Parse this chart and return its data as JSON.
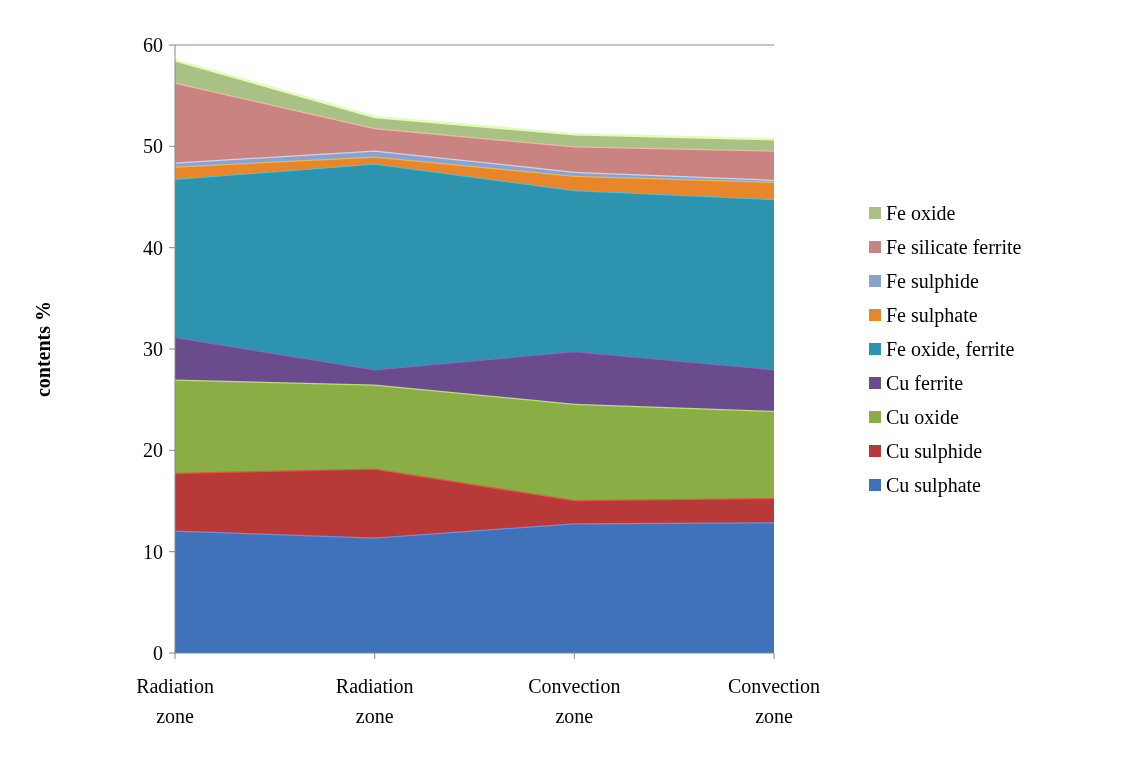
{
  "chart_data": {
    "type": "area",
    "stacked": true,
    "ylabel": "contents %",
    "categories": [
      "Radiation zone",
      "Radiation zone",
      "Convection zone",
      "Convection zone"
    ],
    "ylim": [
      0,
      60
    ],
    "yticks": [
      0,
      10,
      20,
      30,
      40,
      50,
      60
    ],
    "grid": false,
    "legend": "right",
    "series": [
      {
        "name": "Cu sulphate",
        "color": "#3f72b8",
        "values": [
          12.1,
          11.4,
          12.8,
          12.9
        ]
      },
      {
        "name": "Cu sulphide",
        "color": "#b83a38",
        "values": [
          5.7,
          6.8,
          2.3,
          2.4
        ]
      },
      {
        "name": "Cu oxide",
        "color": "#8aad45",
        "values": [
          9.2,
          8.3,
          9.5,
          8.6
        ]
      },
      {
        "name": "Cu ferrite",
        "color": "#6a4c8c",
        "values": [
          4.2,
          1.5,
          5.2,
          4.1
        ]
      },
      {
        "name": "Fe oxide, ferrite",
        "color": "#2e93ae",
        "values": [
          15.6,
          20.3,
          15.9,
          16.8
        ]
      },
      {
        "name": "Fe sulphate",
        "color": "#e8862c",
        "values": [
          1.2,
          0.7,
          1.4,
          1.7
        ]
      },
      {
        "name": "Fe sulphide",
        "color": "#8ba3cc",
        "values": [
          0.4,
          0.6,
          0.4,
          0.2
        ]
      },
      {
        "name": "Fe silicate ferrite",
        "color": "#c98482",
        "values": [
          7.9,
          2.2,
          2.5,
          2.9
        ]
      },
      {
        "name": "Fe oxide",
        "color": "#a9c184",
        "values": [
          2.2,
          1.1,
          1.2,
          1.1
        ]
      }
    ]
  }
}
